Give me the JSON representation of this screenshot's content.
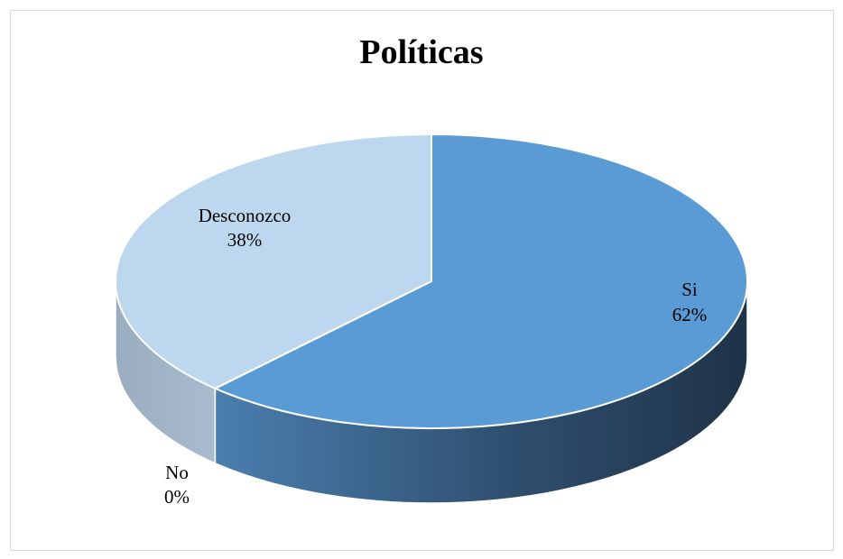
{
  "chart_data": {
    "type": "pie",
    "title": "Políticas",
    "style": "3d",
    "slices": [
      {
        "name": "Si",
        "value": 62,
        "label": "62%",
        "color": "#5b9bd5"
      },
      {
        "name": "No",
        "value": 0,
        "label": "0%",
        "color": "#a5a5a5"
      },
      {
        "name": "Desconozco",
        "value": 38,
        "label": "38%",
        "color": "#bdd7ee"
      }
    ],
    "legend": "none",
    "data_labels": "category-and-percent"
  }
}
